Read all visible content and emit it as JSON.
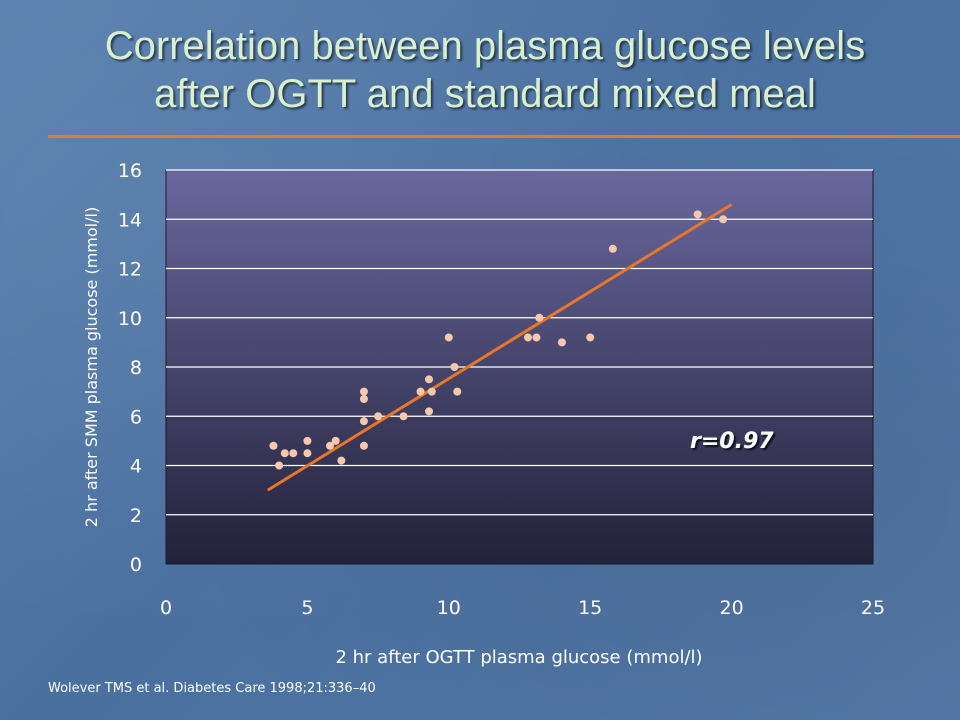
{
  "slide": {
    "title_line1": "Correlation between plasma glucose levels",
    "title_line2": "after OGTT and standard mixed meal",
    "citation": "Wolever TMS et al. Diabetes Care 1998;21:336–40"
  },
  "colors": {
    "title": "#d9f0cf",
    "rule": "#e37a2e",
    "points": "#f6c9ad",
    "fit_line": "#e8772a",
    "plot_top": "#6a679e",
    "plot_bottom": "#22223a"
  },
  "chart_data": {
    "type": "scatter",
    "title": "",
    "xlabel": "2 hr after OGTT plasma glucose (mmol/l)",
    "ylabel": "2 hr after SMM plasma glucose (mmol/l)",
    "xlim": [
      0,
      25
    ],
    "ylim": [
      0,
      16
    ],
    "xticks": [
      0,
      5,
      10,
      15,
      20,
      25
    ],
    "yticks": [
      0,
      2,
      4,
      6,
      8,
      10,
      12,
      14,
      16
    ],
    "grid": "horizontal",
    "annotation": "r=0.97",
    "points": [
      [
        3.8,
        4.8
      ],
      [
        4.0,
        4.0
      ],
      [
        4.2,
        4.5
      ],
      [
        4.5,
        4.5
      ],
      [
        5.0,
        5.0
      ],
      [
        5.0,
        4.5
      ],
      [
        5.8,
        4.8
      ],
      [
        6.0,
        5.0
      ],
      [
        6.2,
        4.2
      ],
      [
        7.0,
        7.0
      ],
      [
        7.0,
        6.7
      ],
      [
        7.0,
        5.8
      ],
      [
        7.0,
        4.8
      ],
      [
        7.5,
        6.0
      ],
      [
        8.4,
        6.0
      ],
      [
        9.0,
        7.0
      ],
      [
        9.3,
        7.5
      ],
      [
        9.3,
        6.2
      ],
      [
        9.4,
        7.0
      ],
      [
        10.0,
        9.2
      ],
      [
        10.2,
        8.0
      ],
      [
        10.3,
        7.0
      ],
      [
        12.8,
        9.2
      ],
      [
        13.1,
        9.2
      ],
      [
        13.2,
        10.0
      ],
      [
        14.0,
        9.0
      ],
      [
        15.0,
        9.2
      ],
      [
        15.8,
        12.8
      ],
      [
        18.8,
        14.2
      ],
      [
        19.7,
        14.0
      ]
    ],
    "fit_line": [
      [
        3.6,
        3.0
      ],
      [
        20.0,
        14.6
      ]
    ]
  }
}
